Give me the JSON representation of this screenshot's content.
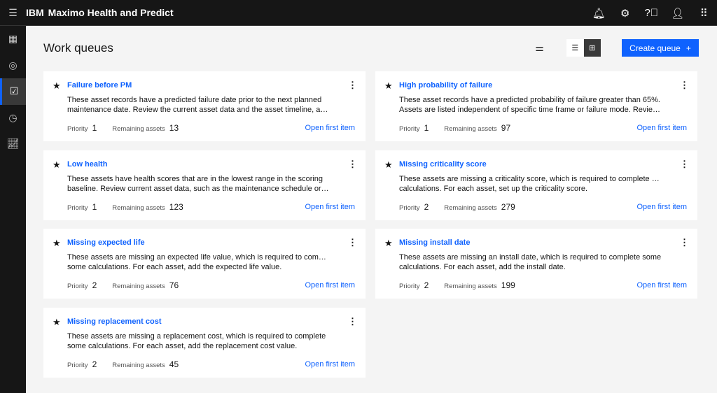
{
  "header": {
    "brand": "IBM",
    "product": "Maximo Health and Predict",
    "icons": [
      "notification-icon",
      "settings-icon",
      "help-icon",
      "user-icon",
      "app-switcher-icon"
    ]
  },
  "sidebar": {
    "items": [
      "dashboard",
      "assets",
      "work-queues",
      "schedule",
      "reports"
    ],
    "active": "work-queues"
  },
  "page": {
    "title": "Work queues",
    "create_label": "Create queue",
    "create_icon": "+"
  },
  "colors": {
    "accent": "#0f62fe",
    "header": "#161616"
  },
  "labels": {
    "priority": "Priority",
    "remaining": "Remaining assets",
    "open": "Open first item"
  },
  "cards": [
    {
      "title": "Failure before PM",
      "line1": "These asset records have a predicted failure date prior to the next planned",
      "line2": "maintenance date. Review the current asset data and the asset timeline, and...",
      "priority": "1",
      "remaining": "13"
    },
    {
      "title": "High probability of failure",
      "line1": "These asset records have a predicted probability of failure greater than 65%.",
      "line2": "Assets are listed independent of specific time frame or failure mode. Review ...",
      "priority": "1",
      "remaining": "97"
    },
    {
      "title": "Low health",
      "line1": "These assets have health scores that are in the lowest range in the scoring",
      "line2": "baseline. Review current asset data, such as the maintenance schedule or th...",
      "priority": "1",
      "remaining": "123"
    },
    {
      "title": "Missing criticality score",
      "line1": "These assets are missing a criticality score, which is required to complete some",
      "line2": "calculations. For each asset, set up the criticality score.",
      "priority": "2",
      "remaining": "279"
    },
    {
      "title": "Missing expected life",
      "line1": "These assets are missing an expected life value, which is required to complete",
      "line2": "some calculations. For each asset, add the expected life value.",
      "priority": "2",
      "remaining": "76"
    },
    {
      "title": "Missing install date",
      "line1": "These assets are missing an install date, which is required to complete some",
      "line2": "calculations. For each asset, add the install date.",
      "priority": "2",
      "remaining": "199"
    },
    {
      "title": "Missing replacement cost",
      "line1": "These assets are missing a replacement cost, which is required to complete",
      "line2": "some calculations. For each asset, add the replacement cost value.",
      "priority": "2",
      "remaining": "45"
    }
  ]
}
